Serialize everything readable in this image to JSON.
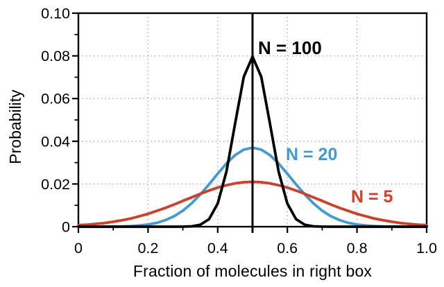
{
  "chart_data": {
    "type": "line",
    "title": "",
    "xlabel": "Fraction of molecules in right box",
    "ylabel": "Probability",
    "xlim": [
      0,
      1.0
    ],
    "ylim": [
      0,
      0.1
    ],
    "x_tick_labels": [
      "0",
      "0.2",
      "0.4",
      "0.6",
      "0.8",
      "1.0"
    ],
    "y_tick_labels": [
      "0",
      "0.02",
      "0.04",
      "0.06",
      "0.08",
      "0.10"
    ],
    "x_major_ticks": [
      0,
      0.2,
      0.4,
      0.6,
      0.8,
      1.0
    ],
    "x_minor_ticks": [
      0.1,
      0.3,
      0.5,
      0.7,
      0.9
    ],
    "y_major_ticks": [
      0,
      0.02,
      0.04,
      0.06,
      0.08,
      0.1
    ],
    "y_minor_ticks": [
      0.01,
      0.03,
      0.05,
      0.07,
      0.09
    ],
    "grid": {
      "style": "dotted",
      "color": "#9b9b9b",
      "at_x": [
        0.2,
        0.4,
        0.6,
        0.8
      ],
      "at_y": [
        0.02,
        0.04,
        0.06,
        0.08
      ]
    },
    "frame_color": "#000000",
    "axis_text_color": "#000000",
    "legend_position": "inline-labels",
    "marker_line": {
      "x": 0.5,
      "color": "#000000"
    },
    "x": [
      0,
      0.025,
      0.05,
      0.075,
      0.1,
      0.125,
      0.15,
      0.175,
      0.2,
      0.225,
      0.25,
      0.275,
      0.3,
      0.325,
      0.35,
      0.375,
      0.4,
      0.425,
      0.45,
      0.475,
      0.5,
      0.525,
      0.55,
      0.575,
      0.6,
      0.625,
      0.65,
      0.675,
      0.7,
      0.725,
      0.75,
      0.775,
      0.8,
      0.825,
      0.85,
      0.875,
      0.9,
      0.925,
      0.95,
      0.975,
      1.0
    ],
    "series": [
      {
        "name": "N = 100",
        "color": "#000000",
        "peak_probability": 0.08,
        "center": 0.5,
        "sigma": 0.05,
        "y": [
          0,
          0,
          0,
          0,
          0,
          0,
          0,
          0,
          0,
          0,
          0,
          0,
          3e-05,
          0.00017,
          0.0009,
          0.0035,
          0.0108,
          0.0258,
          0.0483,
          0.0702,
          0.0796,
          0.0702,
          0.0483,
          0.0258,
          0.0108,
          0.0035,
          0.0009,
          0.00017,
          3e-05,
          0,
          0,
          0,
          0,
          0,
          0,
          0,
          0,
          0,
          0,
          0,
          0
        ]
      },
      {
        "name": "N = 20",
        "color": "#3E9BD3",
        "peak_probability": 0.037,
        "center": 0.5,
        "sigma": 0.112,
        "y": [
          0,
          0,
          1e-05,
          3e-05,
          6e-05,
          0.00014,
          0.00028,
          0.00055,
          0.001,
          0.0018,
          0.0031,
          0.0049,
          0.0075,
          0.0109,
          0.0151,
          0.0198,
          0.0248,
          0.0296,
          0.0335,
          0.0361,
          0.037,
          0.0361,
          0.0335,
          0.0296,
          0.0248,
          0.0198,
          0.0151,
          0.0109,
          0.0075,
          0.0049,
          0.0031,
          0.0018,
          0.001,
          0.00055,
          0.00028,
          0.00014,
          6e-05,
          3e-05,
          1e-05,
          0,
          0
        ]
      },
      {
        "name": "N = 5",
        "color": "#D63B23",
        "peak_probability": 0.021,
        "center": 0.5,
        "sigma": 0.19,
        "y": [
          0.0007,
          0.0009,
          0.0013,
          0.0017,
          0.0023,
          0.003,
          0.0038,
          0.0049,
          0.006,
          0.0074,
          0.0088,
          0.0104,
          0.0121,
          0.0137,
          0.0154,
          0.0169,
          0.0183,
          0.0194,
          0.0203,
          0.0208,
          0.021,
          0.0208,
          0.0203,
          0.0194,
          0.0183,
          0.0169,
          0.0154,
          0.0137,
          0.0121,
          0.0104,
          0.0088,
          0.0074,
          0.006,
          0.0049,
          0.0038,
          0.003,
          0.0023,
          0.0017,
          0.0013,
          0.0009,
          0.0007
        ]
      }
    ],
    "draw_order": [
      1,
      2,
      0
    ]
  }
}
